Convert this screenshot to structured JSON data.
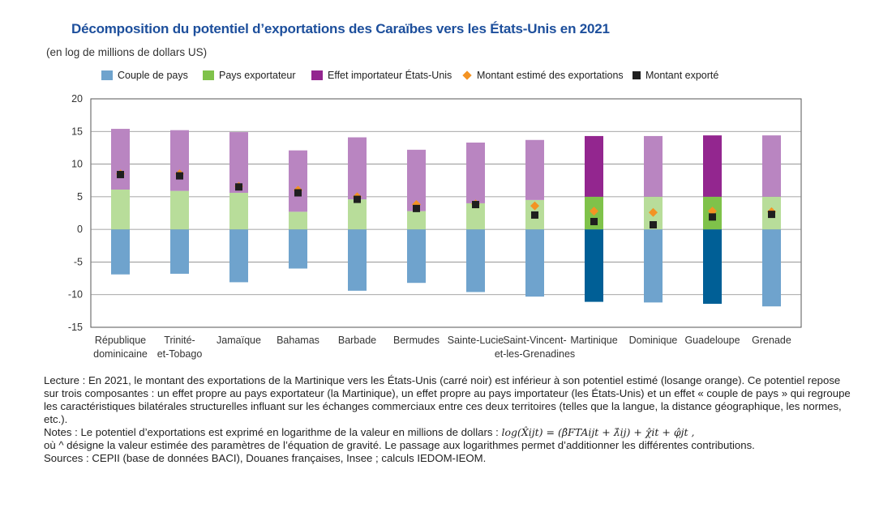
{
  "title": "Décomposition du potentiel d’exportations des Caraïbes vers les États-Unis en 2021",
  "subtitle": "(en log de millions de dollars US)",
  "legend": [
    {
      "label": "Couple de pays",
      "kind": "bar",
      "color": "#6fa3cd"
    },
    {
      "label": "Pays exportateur",
      "kind": "bar",
      "color": "#7fc24a"
    },
    {
      "label": "Effet importateur États-Unis",
      "kind": "bar",
      "color": "#93268f"
    },
    {
      "label": "Montant estimé des exportations",
      "kind": "diamond",
      "color": "#f39323"
    },
    {
      "label": "Montant exporté",
      "kind": "square",
      "color": "#1f1f1f"
    }
  ],
  "chart_data": {
    "type": "bar",
    "stacked": true,
    "ylim": [
      -15,
      20
    ],
    "yticks": [
      "20",
      "15",
      "10",
      "5",
      "0",
      "-5",
      "-10",
      "-15"
    ],
    "categories": [
      [
        "République",
        "dominicaine"
      ],
      [
        "Trinité-",
        "et-Tobago"
      ],
      [
        "Jamaïque"
      ],
      [
        "Bahamas"
      ],
      [
        "Barbade"
      ],
      [
        "Bermudes"
      ],
      [
        "Sainte-Lucie"
      ],
      [
        "Saint-Vincent-",
        "et-les-Grenadines"
      ],
      [
        "Martinique"
      ],
      [
        "Dominique"
      ],
      [
        "Guadeloupe"
      ],
      [
        "Grenade"
      ]
    ],
    "highlighted": [
      false,
      false,
      false,
      false,
      false,
      false,
      false,
      false,
      true,
      false,
      true,
      false
    ],
    "series": [
      {
        "name": "Couple de pays",
        "values": [
          -6.9,
          -6.8,
          -8.1,
          -6.0,
          -9.4,
          -8.2,
          -9.6,
          -10.3,
          -11.1,
          -11.2,
          -11.4,
          -11.8
        ],
        "color_light": "#6fa3cd",
        "color_dark": "#005f96"
      },
      {
        "name": "Pays exportateur",
        "values": [
          6.1,
          5.9,
          5.6,
          2.7,
          4.6,
          2.8,
          4.0,
          4.5,
          5.0,
          5.0,
          5.0,
          5.0
        ],
        "color_light": "#b8dd9a",
        "color_dark": "#7fc24a"
      },
      {
        "name": "Effet importateur États-Unis",
        "values": [
          9.3,
          9.3,
          9.3,
          9.4,
          9.5,
          9.4,
          9.3,
          9.2,
          9.3,
          9.3,
          9.4,
          9.4
        ],
        "color_light": "#b985c1",
        "color_dark": "#93268f"
      }
    ],
    "estimated": [
      8.5,
      8.5,
      6.6,
      6.0,
      5.0,
      3.8,
      3.9,
      3.6,
      2.8,
      2.6,
      2.8,
      2.7
    ],
    "exported": [
      8.4,
      8.2,
      6.5,
      5.6,
      4.6,
      3.2,
      3.8,
      2.2,
      1.2,
      0.7,
      1.9,
      2.3
    ]
  },
  "notes": {
    "lecture": "Lecture : En 2021, le montant des exportations de la Martinique vers les États-Unis (carré noir) est inférieur à son potentiel estimé (losange orange). Ce potentiel repose sur trois composantes : un effet propre au pays exportateur (la Martinique), un effet propre au pays importateur (les États-Unis) et un effet « couple de pays » qui regroupe les caractéristiques bilatérales structurelles influant sur les échanges commerciaux entre ces deux territoires (telles que la langue, la distance géographique, les normes, etc.).",
    "notes_prefix": "Notes : Le potentiel d’exportations est exprimé en logarithme de la valeur en millions de dollars :",
    "formula": "log(X̂ijt) = (β̂FTAijt + λ̂ij) + χ̂it + φ̂jt ,",
    "notes_rest": "où ^ désigne la valeur estimée des paramètres de l’équation de gravité. Le passage aux logarithmes permet d’additionner les différentes contributions.",
    "sources": "Sources : CEPII (base de données BACI), Douanes françaises, Insee ; calculs IEDOM-IEOM."
  }
}
